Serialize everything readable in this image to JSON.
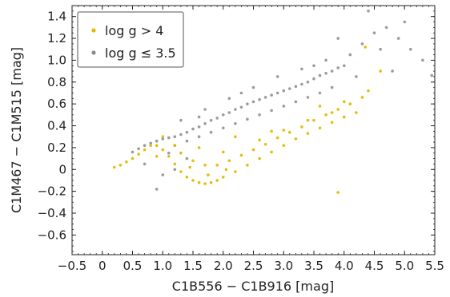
{
  "chart_data": {
    "type": "scatter",
    "title": "",
    "xlabel": "C1B556 − C1B916 [mag]",
    "ylabel": "C1M467 − C1M515 [mag]",
    "xlim": [
      -0.5,
      5.5
    ],
    "ylim": [
      -0.78,
      1.5
    ],
    "x_ticks": [
      -0.5,
      0,
      0.5,
      1,
      1.5,
      2,
      2.5,
      3,
      3.5,
      4,
      4.5,
      5,
      5.5
    ],
    "x_tick_labels": [
      "−0.5",
      "0",
      "0.5",
      "1.0",
      "1.5",
      "2.0",
      "2.5",
      "3.0",
      "3.5",
      "4.0",
      "4.5",
      "5.0",
      "5.5"
    ],
    "y_ticks": [
      -0.6,
      -0.4,
      -0.2,
      0,
      0.2,
      0.4,
      0.6,
      0.8,
      1.0,
      1.2,
      1.4
    ],
    "y_tick_labels": [
      "−0.6",
      "−0.4",
      "−0.2",
      "0",
      "0.2",
      "0.4",
      "0.6",
      "0.8",
      "1.0",
      "1.2",
      "1.4"
    ],
    "grid": false,
    "legend_position": "top-left",
    "series": [
      {
        "name": "log g > 4",
        "color": "#e6b800",
        "points": [
          [
            0.2,
            0.02
          ],
          [
            0.3,
            0.04
          ],
          [
            0.4,
            0.07
          ],
          [
            0.5,
            0.1
          ],
          [
            0.6,
            0.14
          ],
          [
            0.7,
            0.18
          ],
          [
            0.8,
            0.22
          ],
          [
            0.9,
            0.22
          ],
          [
            1.0,
            0.18
          ],
          [
            1.1,
            0.12
          ],
          [
            1.2,
            0.05
          ],
          [
            1.3,
            -0.02
          ],
          [
            1.4,
            -0.07
          ],
          [
            1.5,
            -0.1
          ],
          [
            1.6,
            -0.12
          ],
          [
            1.7,
            -0.13
          ],
          [
            1.8,
            -0.12
          ],
          [
            1.9,
            -0.1
          ],
          [
            2.0,
            -0.07
          ],
          [
            2.2,
            -0.02
          ],
          [
            2.4,
            0.04
          ],
          [
            2.6,
            0.1
          ],
          [
            2.8,
            0.16
          ],
          [
            3.0,
            0.22
          ],
          [
            3.2,
            0.28
          ],
          [
            3.4,
            0.33
          ],
          [
            3.6,
            0.38
          ],
          [
            3.8,
            0.43
          ],
          [
            4.0,
            0.48
          ],
          [
            4.2,
            0.52
          ],
          [
            1.3,
            0.15
          ],
          [
            1.5,
            0.08
          ],
          [
            1.7,
            0.04
          ],
          [
            1.9,
            0.04
          ],
          [
            2.1,
            0.08
          ],
          [
            2.3,
            0.13
          ],
          [
            2.5,
            0.18
          ],
          [
            2.7,
            0.23
          ],
          [
            2.9,
            0.29
          ],
          [
            3.1,
            0.34
          ],
          [
            3.3,
            0.39
          ],
          [
            3.5,
            0.45
          ],
          [
            3.7,
            0.5
          ],
          [
            3.9,
            0.55
          ],
          [
            4.1,
            0.6
          ],
          [
            4.3,
            0.66
          ],
          [
            1.6,
            0.2
          ],
          [
            2.0,
            0.16
          ],
          [
            2.6,
            0.27
          ],
          [
            3.0,
            0.36
          ],
          [
            3.4,
            0.45
          ],
          [
            3.8,
            0.52
          ],
          [
            4.4,
            0.72
          ],
          [
            4.6,
            0.9
          ],
          [
            3.9,
            -0.21
          ],
          [
            4.35,
            1.12
          ],
          [
            1.0,
            0.3
          ],
          [
            0.9,
            0.12
          ],
          [
            1.2,
            0.22
          ],
          [
            2.2,
            0.3
          ],
          [
            2.8,
            0.35
          ],
          [
            3.6,
            0.58
          ],
          [
            4.0,
            0.62
          ],
          [
            1.45,
            0.02
          ],
          [
            1.75,
            -0.05
          ],
          [
            2.05,
            0.0
          ]
        ]
      },
      {
        "name": "log g ≤ 3.5",
        "color": "#7a7a7a",
        "points": [
          [
            0.5,
            0.16
          ],
          [
            0.6,
            0.19
          ],
          [
            0.7,
            0.22
          ],
          [
            0.8,
            0.24
          ],
          [
            0.9,
            0.26
          ],
          [
            1.0,
            0.28
          ],
          [
            1.1,
            0.29
          ],
          [
            1.2,
            0.3
          ],
          [
            1.3,
            0.32
          ],
          [
            1.4,
            0.34
          ],
          [
            1.5,
            0.37
          ],
          [
            1.6,
            0.39
          ],
          [
            1.7,
            0.42
          ],
          [
            1.8,
            0.45
          ],
          [
            1.9,
            0.47
          ],
          [
            2.0,
            0.5
          ],
          [
            2.1,
            0.52
          ],
          [
            2.2,
            0.55
          ],
          [
            2.3,
            0.57
          ],
          [
            2.4,
            0.6
          ],
          [
            2.5,
            0.62
          ],
          [
            2.6,
            0.64
          ],
          [
            2.7,
            0.66
          ],
          [
            2.8,
            0.68
          ],
          [
            2.9,
            0.7
          ],
          [
            3.0,
            0.72
          ],
          [
            3.1,
            0.74
          ],
          [
            3.2,
            0.76
          ],
          [
            3.3,
            0.78
          ],
          [
            3.4,
            0.8
          ],
          [
            3.5,
            0.83
          ],
          [
            3.6,
            0.86
          ],
          [
            3.7,
            0.88
          ],
          [
            3.8,
            0.9
          ],
          [
            3.9,
            0.93
          ],
          [
            4.0,
            0.95
          ],
          [
            1.2,
            0.22
          ],
          [
            1.4,
            0.26
          ],
          [
            1.6,
            0.3
          ],
          [
            1.8,
            0.34
          ],
          [
            2.0,
            0.38
          ],
          [
            2.2,
            0.42
          ],
          [
            2.4,
            0.46
          ],
          [
            2.6,
            0.5
          ],
          [
            2.8,
            0.54
          ],
          [
            3.0,
            0.58
          ],
          [
            3.2,
            0.62
          ],
          [
            3.4,
            0.66
          ],
          [
            3.6,
            0.7
          ],
          [
            3.8,
            0.75
          ],
          [
            1.3,
            0.45
          ],
          [
            1.7,
            0.55
          ],
          [
            2.1,
            0.65
          ],
          [
            2.5,
            0.75
          ],
          [
            2.9,
            0.85
          ],
          [
            3.3,
            0.92
          ],
          [
            3.7,
            1.0
          ],
          [
            4.1,
            1.05
          ],
          [
            4.3,
            1.15
          ],
          [
            4.5,
            1.25
          ],
          [
            4.7,
            1.3
          ],
          [
            4.9,
            1.2
          ],
          [
            5.1,
            1.1
          ],
          [
            5.3,
            1.0
          ],
          [
            5.45,
            0.86
          ],
          [
            4.8,
            0.9
          ],
          [
            5.0,
            1.35
          ],
          [
            4.4,
            1.45
          ],
          [
            3.9,
            1.2
          ],
          [
            1.4,
            0.1
          ],
          [
            1.2,
            0.0
          ],
          [
            1.0,
            -0.05
          ],
          [
            0.9,
            -0.18
          ],
          [
            0.7,
            0.05
          ],
          [
            1.1,
            0.15
          ],
          [
            1.6,
            0.48
          ],
          [
            2.3,
            0.7
          ],
          [
            3.5,
            0.95
          ],
          [
            4.2,
            0.85
          ],
          [
            4.6,
            1.1
          ]
        ]
      }
    ]
  },
  "legend": {
    "items": [
      {
        "label_pre": "log g > 4",
        "color": "#e6b800"
      },
      {
        "label_pre": "log g ≤ 3.5",
        "color": "#8c8c8c"
      }
    ]
  }
}
